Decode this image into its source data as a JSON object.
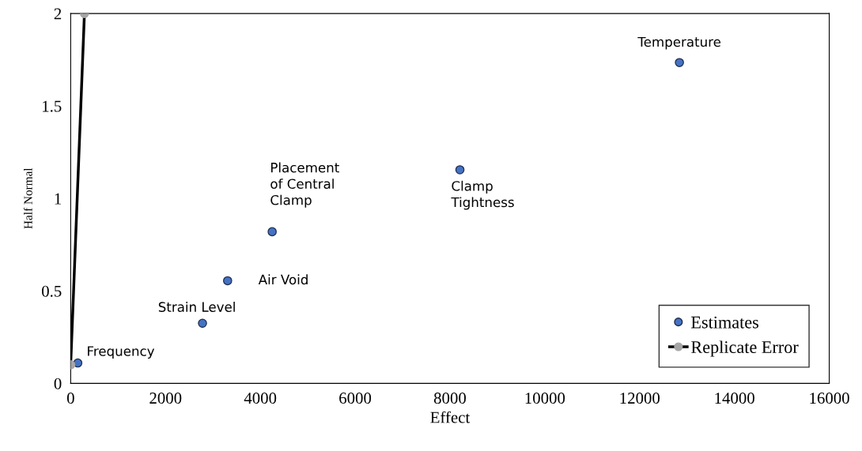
{
  "chart_data": {
    "type": "scatter",
    "xlabel": "Effect",
    "ylabel": "Half Normal",
    "xlim": [
      0,
      16000
    ],
    "xticks": [
      0,
      2000,
      4000,
      6000,
      8000,
      10000,
      12000,
      14000,
      16000
    ],
    "ylim": [
      0,
      2
    ],
    "yticks": [
      0,
      0.5,
      1,
      1.5,
      2
    ],
    "grid": false,
    "legend": "bottom right",
    "marker": "circle",
    "series": [
      {
        "name": "Estimates",
        "color": "#4472c4",
        "x": [
          150,
          2780,
          3310,
          4250,
          8210,
          12840
        ],
        "values": [
          0.11,
          0.325,
          0.555,
          0.82,
          1.155,
          1.735
        ]
      },
      {
        "name": "Replicate Error",
        "type": "line",
        "color": "#000000",
        "colors": [
          "#a6a6a6",
          "#a6a6a6"
        ],
        "x": [
          0,
          290
        ],
        "values": [
          0.1,
          2.0
        ]
      }
    ],
    "annotations": [
      {
        "text": "Frequency",
        "x": 150,
        "y": 0.11
      },
      {
        "text": "Strain Level",
        "x": 2780,
        "y": 0.325
      },
      {
        "text": "Air Void",
        "x": 3310,
        "y": 0.555
      },
      {
        "text": "Placement\nof Central\nClamp",
        "x": 4250,
        "y": 0.82
      },
      {
        "text": "Clamp\nTightness",
        "x": 8210,
        "y": 1.155
      },
      {
        "text": "Temperature",
        "x": 12840,
        "y": 1.735
      }
    ]
  }
}
